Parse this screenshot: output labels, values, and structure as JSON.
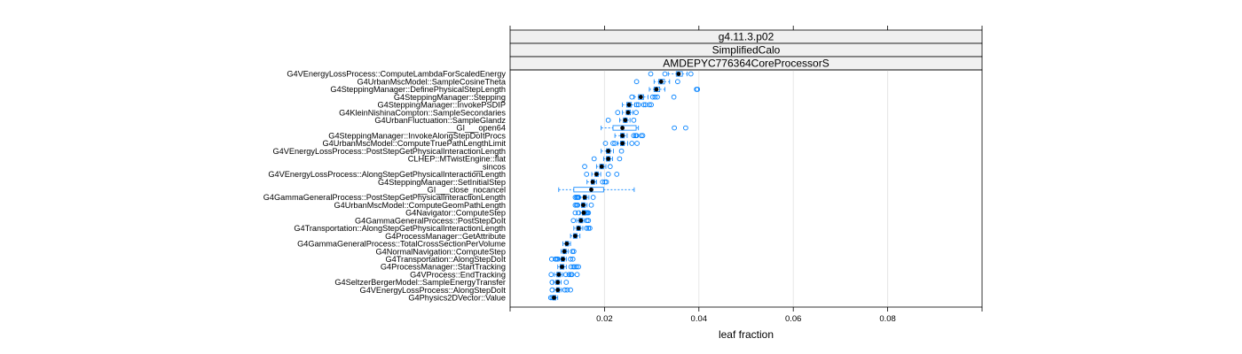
{
  "chart_data": {
    "type": "boxplot",
    "strips": [
      "g4.11.3.p02",
      "SimplifiedCalo",
      "AMDEPYC776364CoreProcessorS"
    ],
    "xlabel": "leaf fraction",
    "xlim": [
      0.0,
      0.1
    ],
    "xticks": [
      0.02,
      0.04,
      0.06,
      0.08
    ],
    "xtick_labels": [
      "0.02",
      "0.04",
      "0.06",
      "0.08"
    ],
    "grid": true,
    "colors": {
      "box": "#0080ff",
      "outlier": "#0080ff",
      "median": "#000000",
      "strip_bg": "#f0f0f0",
      "grid": "#e6e6e6"
    },
    "categories": [
      {
        "name": "G4VEnergyLossProcess::ComputeLambdaForScaledEnergy",
        "whisker_lo": 0.0335,
        "q1": 0.0352,
        "median": 0.0357,
        "q3": 0.0365,
        "whisker_hi": 0.0375,
        "outliers": [
          0.0298,
          0.0328,
          0.0383
        ]
      },
      {
        "name": "G4UrbanMscModel::SampleCosineTheta",
        "whisker_lo": 0.0305,
        "q1": 0.0315,
        "median": 0.032,
        "q3": 0.0327,
        "whisker_hi": 0.0338,
        "outliers": [
          0.0268,
          0.0355
        ]
      },
      {
        "name": "G4SteppingManager::DefinePhysicalStepLength",
        "whisker_lo": 0.0295,
        "q1": 0.0305,
        "median": 0.031,
        "q3": 0.0317,
        "whisker_hi": 0.0328,
        "outliers": [
          0.0395,
          0.0397
        ]
      },
      {
        "name": "G4SteppingManager::Stepping",
        "whisker_lo": 0.0263,
        "q1": 0.0272,
        "median": 0.0277,
        "q3": 0.0283,
        "whisker_hi": 0.0292,
        "outliers": [
          0.0258,
          0.0302,
          0.0307,
          0.0312,
          0.0347
        ]
      },
      {
        "name": "G4SteppingManager::InvokePSDIP",
        "whisker_lo": 0.0238,
        "q1": 0.0247,
        "median": 0.0252,
        "q3": 0.0257,
        "whisker_hi": 0.0264,
        "outliers": [
          0.0268,
          0.0272,
          0.0283,
          0.0287,
          0.0295,
          0.0299
        ]
      },
      {
        "name": "G4KleinNishinaCompton::SampleSecondaries",
        "whisker_lo": 0.0238,
        "q1": 0.0246,
        "median": 0.025,
        "q3": 0.0255,
        "whisker_hi": 0.026,
        "outliers": [
          0.0228,
          0.0267
        ]
      },
      {
        "name": "G4UrbanFluctuation::SampleGlandz",
        "whisker_lo": 0.0232,
        "q1": 0.024,
        "median": 0.0244,
        "q3": 0.0248,
        "whisker_hi": 0.0254,
        "outliers": [
          0.0208,
          0.0262
        ]
      },
      {
        "name": "__GI___open64",
        "whisker_lo": 0.0193,
        "q1": 0.0218,
        "median": 0.0238,
        "q3": 0.0267,
        "whisker_hi": 0.0272,
        "outliers": [
          0.0348,
          0.0372
        ]
      },
      {
        "name": "G4SteppingManager::InvokeAlongStepDoItProcs",
        "whisker_lo": 0.0222,
        "q1": 0.0234,
        "median": 0.0238,
        "q3": 0.0242,
        "whisker_hi": 0.0248,
        "outliers": [
          0.0262,
          0.0266,
          0.0268,
          0.0278,
          0.0281
        ]
      },
      {
        "name": "G4UrbanMscModel::ComputeTruePathLengthLimit",
        "whisker_lo": 0.0228,
        "q1": 0.0234,
        "median": 0.0238,
        "q3": 0.0242,
        "whisker_hi": 0.0249,
        "outliers": [
          0.0202,
          0.0218,
          0.0222,
          0.0258,
          0.0269
        ]
      },
      {
        "name": "G4VEnergyLossProcess::PostStepGetPhysicalInteractionLength",
        "whisker_lo": 0.0193,
        "q1": 0.0204,
        "median": 0.0208,
        "q3": 0.0212,
        "whisker_hi": 0.0219,
        "outliers": [
          0.0236
        ]
      },
      {
        "name": "CLHEP::MTwistEngine::flat",
        "whisker_lo": 0.0198,
        "q1": 0.0204,
        "median": 0.0208,
        "q3": 0.0212,
        "whisker_hi": 0.0217,
        "outliers": [
          0.0178,
          0.0232
        ]
      },
      {
        "name": "__sincos",
        "whisker_lo": 0.0183,
        "q1": 0.019,
        "median": 0.0194,
        "q3": 0.0198,
        "whisker_hi": 0.0203,
        "outliers": [
          0.0158,
          0.0212
        ]
      },
      {
        "name": "G4VEnergyLossProcess::AlongStepGetPhysicalInteractionLength",
        "whisker_lo": 0.0173,
        "q1": 0.018,
        "median": 0.0183,
        "q3": 0.0187,
        "whisker_hi": 0.0192,
        "outliers": [
          0.0162,
          0.0208,
          0.0226
        ]
      },
      {
        "name": "G4SteppingManager::SetInitialStep",
        "whisker_lo": 0.0163,
        "q1": 0.0172,
        "median": 0.0175,
        "q3": 0.0179,
        "whisker_hi": 0.0183,
        "outliers": [
          0.0196,
          0.0201,
          0.0204
        ]
      },
      {
        "name": "__GI___close_nocancel",
        "whisker_lo": 0.0103,
        "q1": 0.0135,
        "median": 0.0172,
        "q3": 0.0198,
        "whisker_hi": 0.0263,
        "outliers": []
      },
      {
        "name": "G4GammaGeneralProcess::PostStepGetPhysicalInteractionLength",
        "whisker_lo": 0.0148,
        "q1": 0.0155,
        "median": 0.0158,
        "q3": 0.0162,
        "whisker_hi": 0.0167,
        "outliers": [
          0.0138,
          0.0141,
          0.0143,
          0.0145,
          0.0176
        ]
      },
      {
        "name": "G4UrbanMscModel::ComputeGeomPathLength",
        "whisker_lo": 0.0145,
        "q1": 0.0151,
        "median": 0.0155,
        "q3": 0.0159,
        "whisker_hi": 0.0163,
        "outliers": [
          0.0138,
          0.0141,
          0.0143,
          0.0172
        ]
      },
      {
        "name": "G4Navigator::ComputeStep",
        "whisker_lo": 0.0148,
        "q1": 0.0153,
        "median": 0.0156,
        "q3": 0.016,
        "whisker_hi": 0.0164,
        "outliers": [
          0.0138,
          0.0145,
          0.0162,
          0.0164,
          0.0166
        ]
      },
      {
        "name": "G4GammaGeneralProcess::PostStepDoIt",
        "whisker_lo": 0.0141,
        "q1": 0.0146,
        "median": 0.015,
        "q3": 0.0154,
        "whisker_hi": 0.0158,
        "outliers": [
          0.0134,
          0.0163,
          0.0166
        ]
      },
      {
        "name": "G4Transportation::AlongStepGetPhysicalInteractionLength",
        "whisker_lo": 0.0135,
        "q1": 0.0141,
        "median": 0.0145,
        "q3": 0.0149,
        "whisker_hi": 0.0154,
        "outliers": [
          0.0162,
          0.0166,
          0.0169
        ]
      },
      {
        "name": "G4ProcessManager::GetAttribute",
        "whisker_lo": 0.0128,
        "q1": 0.0134,
        "median": 0.0138,
        "q3": 0.0142,
        "whisker_hi": 0.0148,
        "outliers": []
      },
      {
        "name": "G4GammaGeneralProcess::TotalCrossSectionPerVolume",
        "whisker_lo": 0.0112,
        "q1": 0.0117,
        "median": 0.012,
        "q3": 0.0124,
        "whisker_hi": 0.0128,
        "outliers": []
      },
      {
        "name": "G4NormalNavigation::ComputeStep",
        "whisker_lo": 0.0108,
        "q1": 0.0112,
        "median": 0.0115,
        "q3": 0.0119,
        "whisker_hi": 0.0123,
        "outliers": [
          0.0132,
          0.0135
        ]
      },
      {
        "name": "G4Transportation::AlongStepDoIt",
        "whisker_lo": 0.0104,
        "q1": 0.0108,
        "median": 0.0112,
        "q3": 0.0115,
        "whisker_hi": 0.0119,
        "outliers": [
          0.0088,
          0.0096,
          0.0098,
          0.0101,
          0.0128,
          0.0133
        ]
      },
      {
        "name": "G4ProcessManager::StartTracking",
        "whisker_lo": 0.0101,
        "q1": 0.0106,
        "median": 0.011,
        "q3": 0.0114,
        "whisker_hi": 0.0119,
        "outliers": [
          0.0129,
          0.0134,
          0.0137,
          0.0141,
          0.0145
        ]
      },
      {
        "name": "G4VProcess::EndTracking",
        "whisker_lo": 0.0094,
        "q1": 0.0099,
        "median": 0.0103,
        "q3": 0.0107,
        "whisker_hi": 0.0111,
        "outliers": [
          0.0087,
          0.0118,
          0.0125,
          0.0129,
          0.0131,
          0.0142
        ]
      },
      {
        "name": "G4SeltzerBergerModel::SampleEnergyTransfer",
        "whisker_lo": 0.0092,
        "q1": 0.0097,
        "median": 0.0101,
        "q3": 0.0104,
        "whisker_hi": 0.0108,
        "outliers": [
          0.0089,
          0.0119
        ]
      },
      {
        "name": "G4VEnergyLossProcess::AlongStepDoIt",
        "whisker_lo": 0.0093,
        "q1": 0.0098,
        "median": 0.0101,
        "q3": 0.0105,
        "whisker_hi": 0.0109,
        "outliers": [
          0.0089,
          0.0116,
          0.0121,
          0.0128
        ]
      },
      {
        "name": "G4Physics2DVector::Value",
        "whisker_lo": 0.0088,
        "q1": 0.0091,
        "median": 0.0093,
        "q3": 0.0097,
        "whisker_hi": 0.0101,
        "outliers": [
          0.0086,
          0.0089
        ]
      }
    ]
  }
}
